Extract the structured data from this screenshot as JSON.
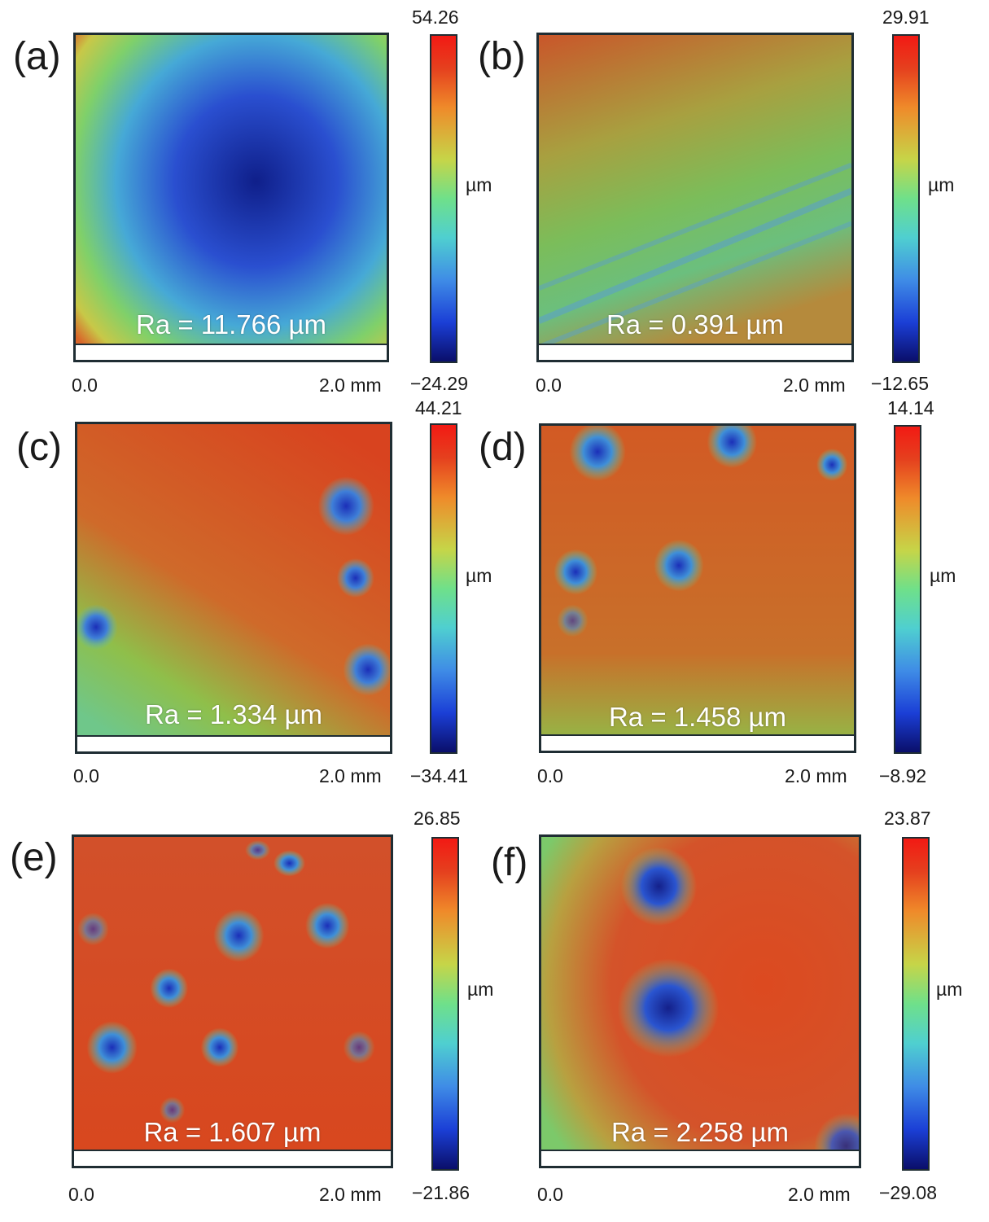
{
  "panels": [
    {
      "letter": "(a)",
      "ra": "Ra = 11.766 µm",
      "x_start": "0.0",
      "x_end": "2.0 mm",
      "cbar_max": "54.26",
      "cbar_min": "−24.29",
      "unit": "µm"
    },
    {
      "letter": "(b)",
      "ra": "Ra = 0.391 µm",
      "x_start": "0.0",
      "x_end": "2.0 mm",
      "cbar_max": "29.91",
      "cbar_min": "−12.65",
      "unit": "µm"
    },
    {
      "letter": "(c)",
      "ra": "Ra = 1.334 µm",
      "x_start": "0.0",
      "x_end": "2.0 mm",
      "cbar_max": "44.21",
      "cbar_min": "−34.41",
      "unit": "µm"
    },
    {
      "letter": "(d)",
      "ra": "Ra = 1.458 µm",
      "x_start": "0.0",
      "x_end": "2.0 mm",
      "cbar_max": "14.14",
      "cbar_min": "−8.92",
      "unit": "µm"
    },
    {
      "letter": "(e)",
      "ra": "Ra = 1.607 µm",
      "x_start": "0.0",
      "x_end": "2.0 mm",
      "cbar_max": "26.85",
      "cbar_min": "−21.86",
      "unit": "µm"
    },
    {
      "letter": "(f)",
      "ra": "Ra = 2.258 µm",
      "x_start": "0.0",
      "x_end": "2.0 mm",
      "cbar_max": "23.87",
      "cbar_min": "−29.08",
      "unit": "µm"
    }
  ],
  "colors": {
    "frame": "#1f2d33",
    "surface_high": "#d9461c",
    "surface_mid": "#7cc95a",
    "surface_low": "#1b2fb8"
  }
}
